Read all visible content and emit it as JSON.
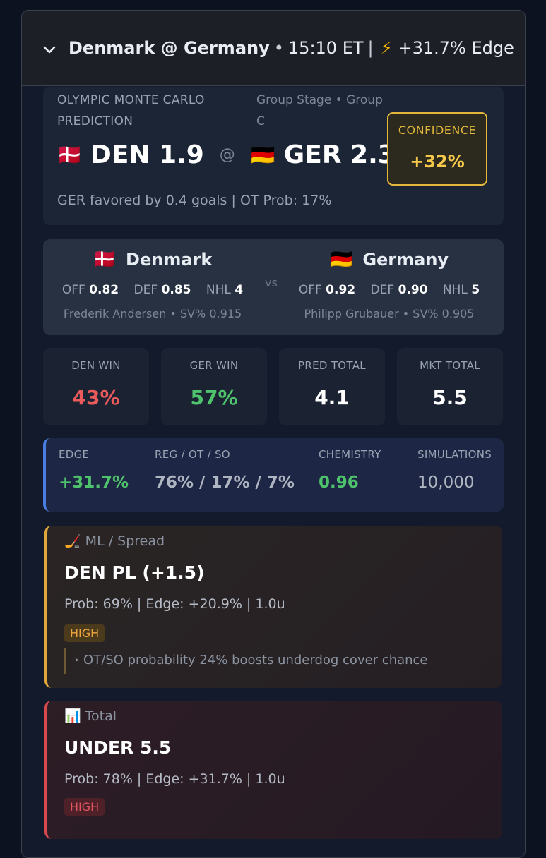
{
  "header": {
    "chevron_icon": "chevron-down-icon",
    "matchup": "Denmark @ Germany",
    "bullet": "•",
    "time": "15:10 ET",
    "divider": "|",
    "bolt_icon": "⚡",
    "edge": "+31.7% Edge"
  },
  "prediction": {
    "kicker": "OLYMPIC MONTE CARLO PREDICTION",
    "stage": "Group Stage • Group C",
    "away": {
      "flag": "🇩🇰",
      "score": "DEN 1.9"
    },
    "at": "@",
    "home": {
      "flag": "🇩🇪",
      "score": "GER 2.3"
    },
    "summary": "GER favored by 0.4 goals | OT Prob: 17%",
    "confidence_label": "CONFIDENCE",
    "confidence_value": "+32%"
  },
  "teams": {
    "away": {
      "flag": "🇩🇰",
      "name": "Denmark",
      "off_label": "OFF",
      "off": "0.82",
      "def_label": "DEF",
      "def": "0.85",
      "nhl_label": "NHL",
      "nhl": "4",
      "goalie": "Frederik Andersen • SV% 0.915"
    },
    "vs": "vs",
    "home": {
      "flag": "🇩🇪",
      "name": "Germany",
      "off_label": "OFF",
      "off": "0.92",
      "def_label": "DEF",
      "def": "0.90",
      "nhl_label": "NHL",
      "nhl": "5",
      "goalie": "Philipp Grubauer • SV% 0.905"
    }
  },
  "tiles": [
    {
      "label": "DEN WIN",
      "value": "43%",
      "color": "#ec5b5b"
    },
    {
      "label": "GER WIN",
      "value": "57%",
      "color": "#4fc36b"
    },
    {
      "label": "PRED TOTAL",
      "value": "4.1",
      "color": "#ffffff"
    },
    {
      "label": "MKT TOTAL",
      "value": "5.5",
      "color": "#ffffff"
    }
  ],
  "edge_bar": {
    "edge_label": "EDGE",
    "edge_value": "+31.7%",
    "reg_label": "REG / OT / SO",
    "reg_value": "76% / 17% / 7%",
    "chem_label": "CHEMISTRY",
    "chem_value": "0.96",
    "sims_label": "SIMULATIONS",
    "sims_value": "10,000",
    "accent": "#4a7de0"
  },
  "bets": [
    {
      "icon": "🏒",
      "category": "ML / Spread",
      "pick": "DEN PL (+1.5)",
      "meta": "Prob: 69% | Edge: +20.9% | 1.0u",
      "badge": "HIGH",
      "note": "OT/SO probability 24% boosts underdog cover chance",
      "accent": "#e0a83a"
    },
    {
      "icon": "📊",
      "category": "Total",
      "pick": "UNDER 5.5",
      "meta": "Prob: 78% | Edge: +31.7% | 1.0u",
      "badge": "HIGH",
      "accent": "#d9484d"
    }
  ]
}
